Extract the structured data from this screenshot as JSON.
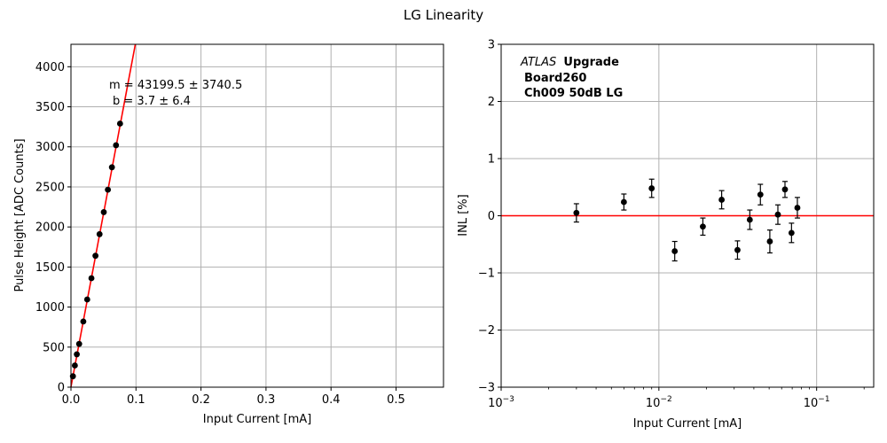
{
  "figure": {
    "title": "LG Linearity"
  },
  "chart_data": [
    {
      "type": "scatter",
      "title": "",
      "xlabel": "Input Current [mA]",
      "ylabel": "Pulse Height [ADC Counts]",
      "xlim": [
        0,
        0.573
      ],
      "ylim": [
        0,
        4280
      ],
      "xticks": [
        0.0,
        0.1,
        0.2,
        0.3,
        0.4,
        0.5
      ],
      "xtick_labels": [
        "0.0",
        "0.1",
        "0.2",
        "0.3",
        "0.4",
        "0.5"
      ],
      "yticks": [
        0,
        500,
        1000,
        1500,
        2000,
        2500,
        3000,
        3500,
        4000
      ],
      "ytick_labels": [
        "0",
        "500",
        "1000",
        "1500",
        "2000",
        "2500",
        "3000",
        "3500",
        "4000"
      ],
      "grid": true,
      "fit_line": {
        "slope": 43199.5,
        "intercept": 3.7,
        "color": "#ff0000"
      },
      "annotation": {
        "line1": "m = 43199.5 ± 3740.5",
        "line2": "b = 3.7 ± 6.4"
      },
      "points": {
        "x": [
          0.003,
          0.006,
          0.009,
          0.0126,
          0.019,
          0.025,
          0.0315,
          0.0377,
          0.044,
          0.0505,
          0.0568,
          0.063,
          0.0693,
          0.0755
        ],
        "y": [
          136,
          271,
          410,
          540,
          820,
          1095,
          1360,
          1640,
          1910,
          2185,
          2465,
          2745,
          3020,
          3290
        ]
      },
      "marker_color": "#000000"
    },
    {
      "type": "scatter",
      "title": "",
      "xlabel": "Input Current [mA]",
      "ylabel": "INL [%]",
      "xscale": "log",
      "xlim": [
        0.001,
        0.23
      ],
      "ylim": [
        -3,
        3
      ],
      "xticks": [
        0.001,
        0.01,
        0.1
      ],
      "xtick_labels": [
        "10",
        "10",
        "10"
      ],
      "xtick_exponents": [
        "−3",
        "−2",
        "−1"
      ],
      "yticks": [
        -3,
        -2,
        -1,
        0,
        1,
        2,
        3
      ],
      "ytick_labels": [
        "−3",
        "−2",
        "−1",
        "0",
        "1",
        "2",
        "3"
      ],
      "grid": true,
      "reference_line": {
        "y": 0,
        "color": "#ff0000"
      },
      "annotation": {
        "italic": "ATLAS",
        "bold": "Upgrade",
        "line2": "Board260",
        "line3": "Ch009 50dB LG"
      },
      "points": {
        "x": [
          0.003,
          0.006,
          0.009,
          0.0126,
          0.019,
          0.025,
          0.0315,
          0.0377,
          0.044,
          0.0505,
          0.0568,
          0.063,
          0.0693,
          0.0755
        ],
        "y": [
          0.05,
          0.24,
          0.48,
          -0.62,
          -0.19,
          0.28,
          -0.6,
          -0.07,
          0.37,
          -0.45,
          0.02,
          0.46,
          -0.3,
          0.14
        ],
        "err": [
          0.16,
          0.14,
          0.16,
          0.17,
          0.15,
          0.16,
          0.16,
          0.17,
          0.18,
          0.2,
          0.17,
          0.14,
          0.17,
          0.18
        ]
      },
      "marker_color": "#000000"
    }
  ]
}
